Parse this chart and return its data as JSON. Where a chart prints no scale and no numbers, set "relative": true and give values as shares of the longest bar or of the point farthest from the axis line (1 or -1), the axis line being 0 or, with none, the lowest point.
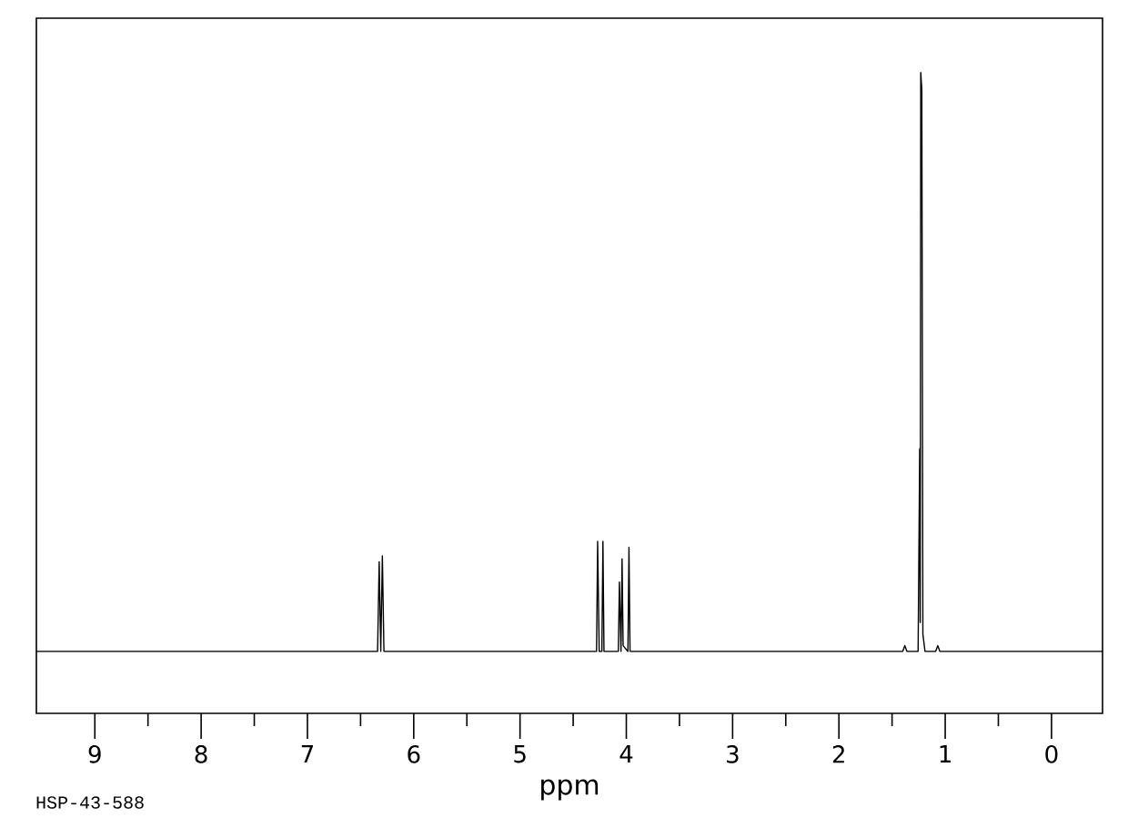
{
  "chart_data": {
    "type": "line",
    "relative": true,
    "xlabel": "ppm",
    "annotations": [
      "HSP-43-588"
    ],
    "xlim": [
      9.55,
      -0.48
    ],
    "xticks": [
      9,
      8,
      7,
      6,
      5,
      4,
      3,
      2,
      1,
      0
    ],
    "series": [
      {
        "color": "#000000",
        "x": [
          9.55,
          6.34,
          6.325,
          6.31,
          6.295,
          6.28,
          4.28,
          4.27,
          4.255,
          4.23,
          4.22,
          4.21,
          4.075,
          4.065,
          4.05,
          4.04,
          4.03,
          3.985,
          3.975,
          3.965,
          1.4,
          1.38,
          1.36,
          1.255,
          1.24,
          1.235,
          1.23,
          1.22,
          1.21,
          1.19,
          1.09,
          1.07,
          1.05,
          -0.48
        ],
        "values": [
          0,
          0,
          0.155,
          0,
          0.165,
          0,
          0,
          0.19,
          0,
          0,
          0.19,
          0,
          0,
          0.12,
          0,
          0.16,
          0.01,
          0,
          0.18,
          0,
          0,
          0.01,
          0,
          0,
          0.35,
          0.05,
          1.0,
          0.97,
          0.03,
          0,
          0,
          0.01,
          0,
          0
        ]
      }
    ]
  }
}
